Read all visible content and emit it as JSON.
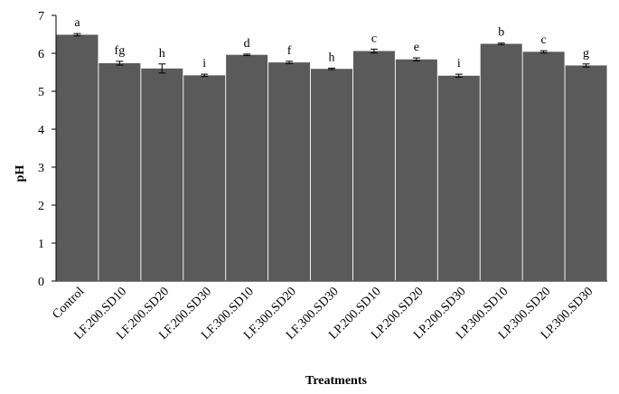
{
  "chart_data": {
    "type": "bar",
    "title": "",
    "xlabel": "Treatments",
    "ylabel": "pH",
    "ylim": [
      0,
      7
    ],
    "yticks": [
      0,
      1,
      2,
      3,
      4,
      5,
      6,
      7
    ],
    "grid": false,
    "legend": "none",
    "bar_color": "#5a5a5a",
    "categories": [
      "Control",
      "LF.200.SD10",
      "LF.200.SD20",
      "LF.200.SD30",
      "LF.300.SD10",
      "LF.300.SD20",
      "LF.300.SD30",
      "LP.200.SD10",
      "LP.200.SD20",
      "LP.200.SD30",
      "LP.300.SD10",
      "LP.300.SD20",
      "LP.300.SD30"
    ],
    "values": [
      6.49,
      5.74,
      5.6,
      5.42,
      5.96,
      5.76,
      5.59,
      6.06,
      5.84,
      5.41,
      6.25,
      6.04,
      5.68
    ],
    "errors": [
      0.03,
      0.05,
      0.12,
      0.03,
      0.02,
      0.03,
      0.02,
      0.05,
      0.04,
      0.04,
      0.02,
      0.03,
      0.04
    ],
    "significance_labels": [
      "a",
      "fg",
      "h",
      "i",
      "d",
      "f",
      "h",
      "c",
      "e",
      "i",
      "b",
      "c",
      "g"
    ]
  }
}
